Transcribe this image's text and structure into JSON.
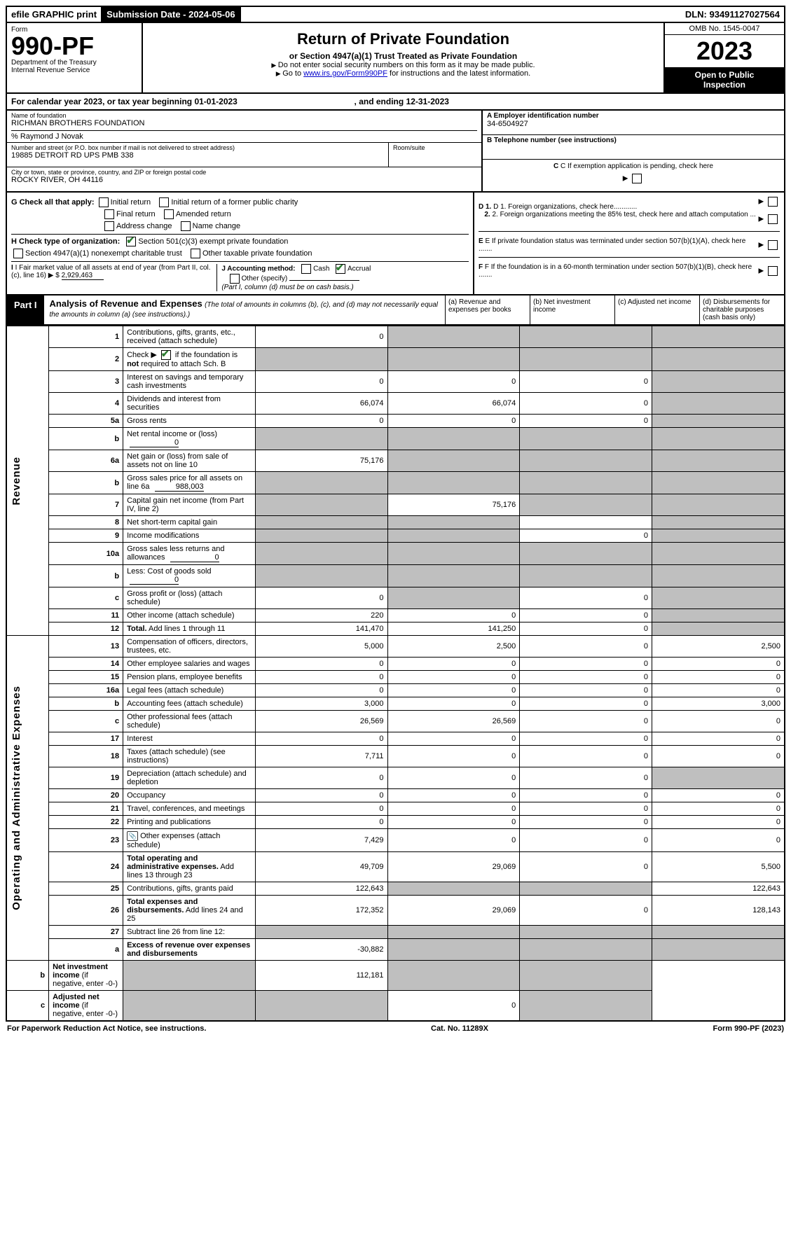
{
  "top": {
    "efile": "efile GRAPHIC print",
    "sub_label": "Submission Date - 2024-05-06",
    "dln": "DLN: 93491127027564"
  },
  "header": {
    "form_word": "Form",
    "form_no": "990-PF",
    "dept": "Department of the Treasury",
    "irs": "Internal Revenue Service",
    "title": "Return of Private Foundation",
    "subtitle": "or Section 4947(a)(1) Trust Treated as Private Foundation",
    "inst1": "Do not enter social security numbers on this form as it may be made public.",
    "inst2_pre": "Go to ",
    "inst2_link": "www.irs.gov/Form990PF",
    "inst2_post": " for instructions and the latest information.",
    "omb": "OMB No. 1545-0047",
    "year": "2023",
    "inspection1": "Open to Public",
    "inspection2": "Inspection"
  },
  "cal": {
    "text_pre": "For calendar year 2023, or tax year beginning ",
    "begin": "01-01-2023",
    "mid": " , and ending ",
    "end": "12-31-2023"
  },
  "ident": {
    "name_label": "Name of foundation",
    "name": "RICHMAN BROTHERS FOUNDATION",
    "care_of": "% Raymond J Novak",
    "addr_label": "Number and street (or P.O. box number if mail is not delivered to street address)",
    "addr": "19885 DETROIT RD UPS PMB 338",
    "room_label": "Room/suite",
    "room": "",
    "city_label": "City or town, state or province, country, and ZIP or foreign postal code",
    "city": "ROCKY RIVER, OH  44116",
    "a_label": "A Employer identification number",
    "a_val": "34-6504927",
    "b_label": "B Telephone number (see instructions)",
    "b_val": "",
    "c_label": "C If exemption application is pending, check here"
  },
  "checks": {
    "g_label": "G Check all that apply:",
    "g_opts": [
      "Initial return",
      "Initial return of a former public charity",
      "Final return",
      "Amended return",
      "Address change",
      "Name change"
    ],
    "h_label": "H Check type of organization:",
    "h_opts": [
      "Section 501(c)(3) exempt private foundation",
      "Section 4947(a)(1) nonexempt charitable trust",
      "Other taxable private foundation"
    ],
    "i_label": "I Fair market value of all assets at end of year (from Part II, col. (c), line 16) ",
    "i_prefix": "▶ $",
    "i_val": "2,929,463",
    "j_label": "J Accounting method:",
    "j_cash": "Cash",
    "j_accrual": "Accrual",
    "j_other": "Other (specify)",
    "j_note": "(Part I, column (d) must be on cash basis.)",
    "d1": "D 1. Foreign organizations, check here............",
    "d2": "2. Foreign organizations meeting the 85% test, check here and attach computation ...",
    "e": "E If private foundation status was terminated under section 507(b)(1)(A), check here .......",
    "f": "F If the foundation is in a 60-month termination under section 507(b)(1)(B), check here ......."
  },
  "part1": {
    "label": "Part I",
    "title": "Analysis of Revenue and Expenses",
    "note": "(The total of amounts in columns (b), (c), and (d) may not necessarily equal the amounts in column (a) (see instructions).)",
    "col_a": "(a) Revenue and expenses per books",
    "col_b": "(b) Net investment income",
    "col_c": "(c) Adjusted net income",
    "col_d": "(d) Disbursements for charitable purposes (cash basis only)"
  },
  "side_labels": {
    "rev": "Revenue",
    "exp": "Operating and Administrative Expenses"
  },
  "rows": [
    {
      "ln": "1",
      "desc": "Contributions, gifts, grants, etc., received (attach schedule)",
      "a": "0",
      "b": "",
      "c": "",
      "d": "",
      "shade": [
        "b",
        "c",
        "d"
      ]
    },
    {
      "ln": "2",
      "desc": "Check ▶ ☑ if the foundation is <b>not</b> required to attach Sch. B",
      "a": "",
      "b": "",
      "c": "",
      "d": "",
      "shade": [
        "a",
        "b",
        "c",
        "d"
      ],
      "checkmark": true
    },
    {
      "ln": "3",
      "desc": "Interest on savings and temporary cash investments",
      "a": "0",
      "b": "0",
      "c": "0",
      "d": "",
      "shade": [
        "d"
      ]
    },
    {
      "ln": "4",
      "desc": "Dividends and interest from securities",
      "a": "66,074",
      "b": "66,074",
      "c": "0",
      "d": "",
      "shade": [
        "d"
      ]
    },
    {
      "ln": "5a",
      "desc": "Gross rents",
      "a": "0",
      "b": "0",
      "c": "0",
      "d": "",
      "shade": [
        "d"
      ]
    },
    {
      "ln": "b",
      "desc": "Net rental income or (loss)",
      "inline": "0",
      "a": "",
      "b": "",
      "c": "",
      "d": "",
      "shade": [
        "a",
        "b",
        "c",
        "d"
      ]
    },
    {
      "ln": "6a",
      "desc": "Net gain or (loss) from sale of assets not on line 10",
      "a": "75,176",
      "b": "",
      "c": "",
      "d": "",
      "shade": [
        "b",
        "c",
        "d"
      ]
    },
    {
      "ln": "b",
      "desc": "Gross sales price for all assets on line 6a",
      "inline": "988,003",
      "a": "",
      "b": "",
      "c": "",
      "d": "",
      "shade": [
        "a",
        "b",
        "c",
        "d"
      ]
    },
    {
      "ln": "7",
      "desc": "Capital gain net income (from Part IV, line 2)",
      "a": "",
      "b": "75,176",
      "c": "",
      "d": "",
      "shade": [
        "a",
        "c",
        "d"
      ]
    },
    {
      "ln": "8",
      "desc": "Net short-term capital gain",
      "a": "",
      "b": "",
      "c": "",
      "d": "",
      "shade": [
        "a",
        "b",
        "d"
      ]
    },
    {
      "ln": "9",
      "desc": "Income modifications",
      "a": "",
      "b": "",
      "c": "0",
      "d": "",
      "shade": [
        "a",
        "b",
        "d"
      ]
    },
    {
      "ln": "10a",
      "desc": "Gross sales less returns and allowances",
      "inline": "0",
      "a": "",
      "b": "",
      "c": "",
      "d": "",
      "shade": [
        "a",
        "b",
        "c",
        "d"
      ]
    },
    {
      "ln": "b",
      "desc": "Less: Cost of goods sold",
      "inline": "0",
      "a": "",
      "b": "",
      "c": "",
      "d": "",
      "shade": [
        "a",
        "b",
        "c",
        "d"
      ]
    },
    {
      "ln": "c",
      "desc": "Gross profit or (loss) (attach schedule)",
      "a": "0",
      "b": "",
      "c": "0",
      "d": "",
      "shade": [
        "b",
        "d"
      ]
    },
    {
      "ln": "11",
      "desc": "Other income (attach schedule)",
      "a": "220",
      "b": "0",
      "c": "0",
      "d": "",
      "shade": [
        "d"
      ]
    },
    {
      "ln": "12",
      "desc": "<b>Total.</b> Add lines 1 through 11",
      "a": "141,470",
      "b": "141,250",
      "c": "0",
      "d": "",
      "shade": [
        "d"
      ],
      "bold": true
    },
    {
      "ln": "13",
      "desc": "Compensation of officers, directors, trustees, etc.",
      "a": "5,000",
      "b": "2,500",
      "c": "0",
      "d": "2,500"
    },
    {
      "ln": "14",
      "desc": "Other employee salaries and wages",
      "a": "0",
      "b": "0",
      "c": "0",
      "d": "0"
    },
    {
      "ln": "15",
      "desc": "Pension plans, employee benefits",
      "a": "0",
      "b": "0",
      "c": "0",
      "d": "0"
    },
    {
      "ln": "16a",
      "desc": "Legal fees (attach schedule)",
      "a": "0",
      "b": "0",
      "c": "0",
      "d": "0"
    },
    {
      "ln": "b",
      "desc": "Accounting fees (attach schedule)",
      "a": "3,000",
      "b": "0",
      "c": "0",
      "d": "3,000"
    },
    {
      "ln": "c",
      "desc": "Other professional fees (attach schedule)",
      "a": "26,569",
      "b": "26,569",
      "c": "0",
      "d": "0"
    },
    {
      "ln": "17",
      "desc": "Interest",
      "a": "0",
      "b": "0",
      "c": "0",
      "d": "0"
    },
    {
      "ln": "18",
      "desc": "Taxes (attach schedule) (see instructions)",
      "a": "7,711",
      "b": "0",
      "c": "0",
      "d": "0"
    },
    {
      "ln": "19",
      "desc": "Depreciation (attach schedule) and depletion",
      "a": "0",
      "b": "0",
      "c": "0",
      "d": "",
      "shade": [
        "d"
      ]
    },
    {
      "ln": "20",
      "desc": "Occupancy",
      "a": "0",
      "b": "0",
      "c": "0",
      "d": "0"
    },
    {
      "ln": "21",
      "desc": "Travel, conferences, and meetings",
      "a": "0",
      "b": "0",
      "c": "0",
      "d": "0"
    },
    {
      "ln": "22",
      "desc": "Printing and publications",
      "a": "0",
      "b": "0",
      "c": "0",
      "d": "0"
    },
    {
      "ln": "23",
      "desc": "Other expenses (attach schedule)",
      "a": "7,429",
      "b": "0",
      "c": "0",
      "d": "0",
      "icon": true
    },
    {
      "ln": "24",
      "desc": "<b>Total operating and administrative expenses.</b> Add lines 13 through 23",
      "a": "49,709",
      "b": "29,069",
      "c": "0",
      "d": "5,500"
    },
    {
      "ln": "25",
      "desc": "Contributions, gifts, grants paid",
      "a": "122,643",
      "b": "",
      "c": "",
      "d": "122,643",
      "shade": [
        "b",
        "c"
      ]
    },
    {
      "ln": "26",
      "desc": "<b>Total expenses and disbursements.</b> Add lines 24 and 25",
      "a": "172,352",
      "b": "29,069",
      "c": "0",
      "d": "128,143"
    },
    {
      "ln": "27",
      "desc": "Subtract line 26 from line 12:",
      "a": "",
      "b": "",
      "c": "",
      "d": "",
      "shade": [
        "a",
        "b",
        "c",
        "d"
      ]
    },
    {
      "ln": "a",
      "desc": "<b>Excess of revenue over expenses and disbursements</b>",
      "a": "-30,882",
      "b": "",
      "c": "",
      "d": "",
      "shade": [
        "b",
        "c",
        "d"
      ]
    },
    {
      "ln": "b",
      "desc": "<b>Net investment income</b> (if negative, enter -0-)",
      "a": "",
      "b": "112,181",
      "c": "",
      "d": "",
      "shade": [
        "a",
        "c",
        "d"
      ]
    },
    {
      "ln": "c",
      "desc": "<b>Adjusted net income</b> (if negative, enter -0-)",
      "a": "",
      "b": "",
      "c": "0",
      "d": "",
      "shade": [
        "a",
        "b",
        "d"
      ]
    }
  ],
  "footer": {
    "left": "For Paperwork Reduction Act Notice, see instructions.",
    "mid": "Cat. No. 11289X",
    "right": "Form 990-PF (2023)"
  },
  "colors": {
    "link": "#0000cc",
    "check": "#2e7d32",
    "shade": "#bfbfbf"
  }
}
